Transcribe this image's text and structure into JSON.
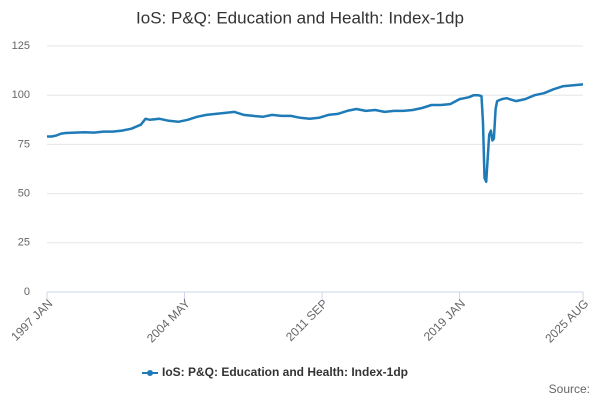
{
  "chart_data": {
    "type": "line",
    "title": "IoS: P&Q: Education and Health: Index-1dp",
    "x": [
      1997.0,
      1997.25,
      1997.5,
      1997.75,
      1998.0,
      1998.5,
      1999.0,
      1999.5,
      2000.0,
      2000.5,
      2001.0,
      2001.5,
      2002.0,
      2002.25,
      2002.5,
      2003.0,
      2003.5,
      2004.0,
      2004.5,
      2005.0,
      2005.5,
      2006.0,
      2006.5,
      2007.0,
      2007.5,
      2008.0,
      2008.5,
      2009.0,
      2009.5,
      2010.0,
      2010.5,
      2011.0,
      2011.5,
      2012.0,
      2012.5,
      2013.0,
      2013.5,
      2014.0,
      2014.5,
      2015.0,
      2015.5,
      2016.0,
      2016.5,
      2017.0,
      2017.5,
      2018.0,
      2018.5,
      2019.0,
      2019.25,
      2019.5,
      2019.75,
      2020.0,
      2020.17,
      2020.25,
      2020.33,
      2020.42,
      2020.5,
      2020.58,
      2020.67,
      2020.75,
      2020.83,
      2020.92,
      2021.0,
      2021.25,
      2021.5,
      2022.0,
      2022.5,
      2023.0,
      2023.5,
      2024.0,
      2024.5,
      2025.0,
      2025.58
    ],
    "series": [
      {
        "name": "IoS: P&Q: Education and Health: Index-1dp",
        "color": "#1f7bb8",
        "values": [
          79,
          79,
          79.5,
          80.5,
          80.8,
          81,
          81.2,
          81,
          81.5,
          81.5,
          82,
          83,
          85,
          88,
          87.5,
          88,
          87,
          86.5,
          87.5,
          89,
          90,
          90.5,
          91,
          91.5,
          90,
          89.5,
          89,
          90,
          89.5,
          89.5,
          88.5,
          88,
          88.5,
          90,
          90.5,
          92,
          93,
          92,
          92.5,
          91.5,
          92,
          92,
          92.5,
          93.5,
          95,
          95,
          95.5,
          98,
          98.5,
          99,
          100,
          100,
          99.5,
          86,
          58,
          56,
          68,
          80,
          82,
          77,
          78,
          93,
          97,
          98,
          98.5,
          97,
          98,
          100,
          101,
          103,
          104.5,
          105,
          105.5
        ]
      }
    ],
    "xlim": [
      1997.0,
      2025.58
    ],
    "xticks": [
      {
        "value": 1997.0,
        "label": "1997 JAN"
      },
      {
        "value": 2004.33,
        "label": "2004 MAY"
      },
      {
        "value": 2011.67,
        "label": "2011 SEP"
      },
      {
        "value": 2019.0,
        "label": "2019 JAN"
      },
      {
        "value": 2025.58,
        "label": "2025 AUG"
      }
    ],
    "ylim": [
      0,
      125
    ],
    "yticks": [
      0,
      25,
      50,
      75,
      100,
      125
    ],
    "grid": true,
    "source_label": "Source:"
  }
}
